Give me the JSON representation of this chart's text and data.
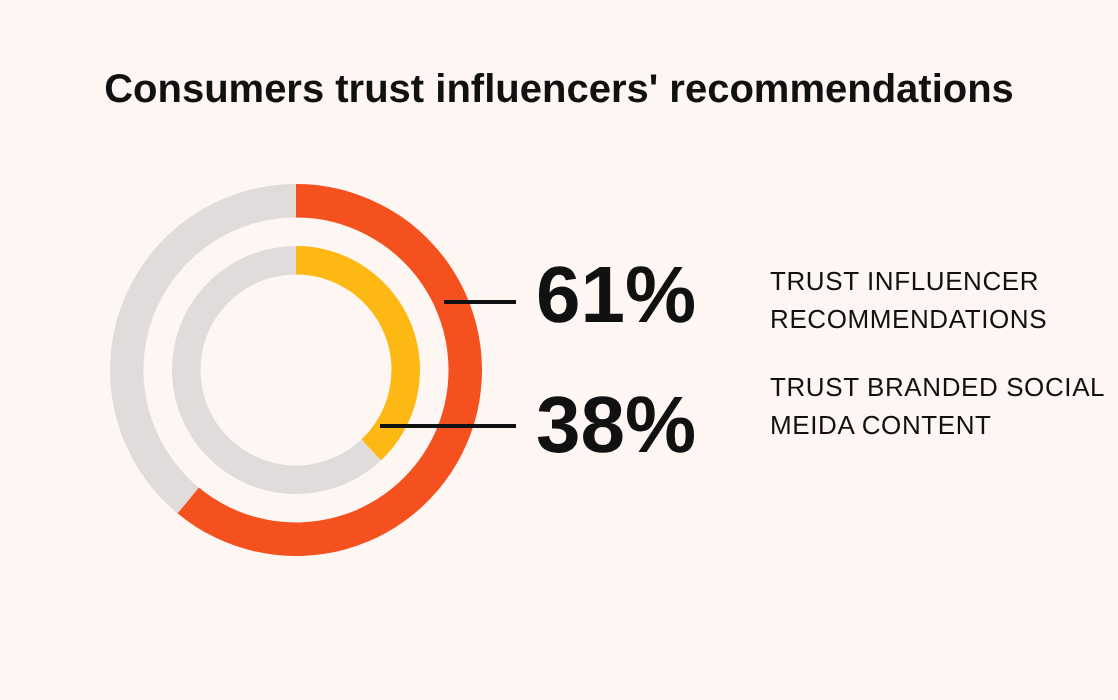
{
  "chart_data": {
    "type": "donut",
    "title": "Consumers trust influencers' recommendations",
    "categories": [
      null,
      null
    ],
    "series": [
      {
        "name": "TRUST INFLUENCER RECOMMENDATIONS",
        "values": [
          61,
          39
        ],
        "colors": [
          "#f4511e",
          "#e0dcdb"
        ],
        "value_labels": [
          "61%",
          null
        ]
      },
      {
        "name": "TRUST BRANDED SOCIAL MEIDA CONTENT",
        "values": [
          38,
          62
        ],
        "colors": [
          "#fdb813",
          "#e0dcdb"
        ],
        "value_labels": [
          "38%",
          null
        ]
      }
    ],
    "legend": false
  }
}
